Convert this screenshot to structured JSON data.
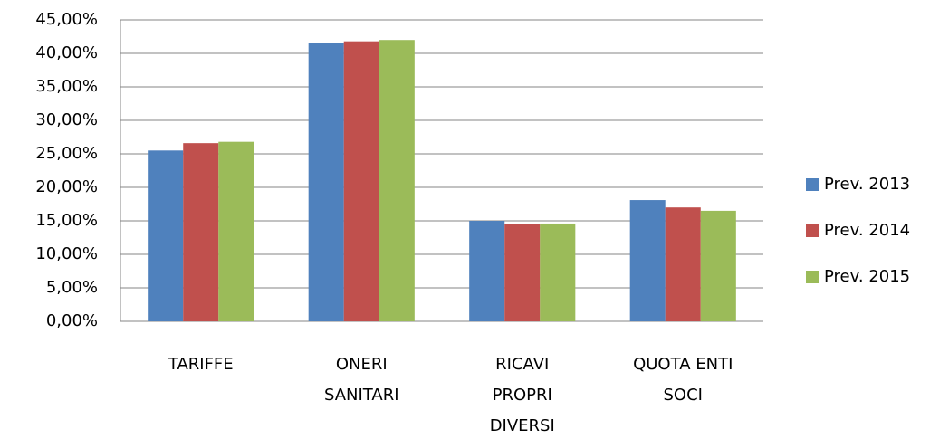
{
  "chart_data": {
    "type": "bar",
    "categories": [
      [
        "TARIFFE"
      ],
      [
        "ONERI",
        "SANITARI"
      ],
      [
        "RICAVI",
        "PROPRI",
        "DIVERSI"
      ],
      [
        "QUOTA ENTI",
        "SOCI"
      ]
    ],
    "series": [
      {
        "name": "Prev. 2013",
        "color": "#4f81bd",
        "values": [
          25.5,
          41.6,
          15.0,
          18.1
        ]
      },
      {
        "name": "Prev. 2014",
        "color": "#c0504d",
        "values": [
          26.6,
          41.8,
          14.5,
          17.0
        ]
      },
      {
        "name": "Prev. 2015",
        "color": "#9bbb59",
        "values": [
          26.8,
          42.0,
          14.6,
          16.5
        ]
      }
    ],
    "ylim": [
      0,
      45
    ],
    "yticks": [
      {
        "value": 0,
        "label": "0,00%"
      },
      {
        "value": 5,
        "label": "5,00%"
      },
      {
        "value": 10,
        "label": "10,00%"
      },
      {
        "value": 15,
        "label": "15,00%"
      },
      {
        "value": 20,
        "label": "20,00%"
      },
      {
        "value": 25,
        "label": "25,00%"
      },
      {
        "value": 30,
        "label": "30,00%"
      },
      {
        "value": 35,
        "label": "35,00%"
      },
      {
        "value": 40,
        "label": "40,00%"
      },
      {
        "value": 45,
        "label": "45,00%"
      }
    ],
    "grid": true,
    "legend": "right"
  }
}
